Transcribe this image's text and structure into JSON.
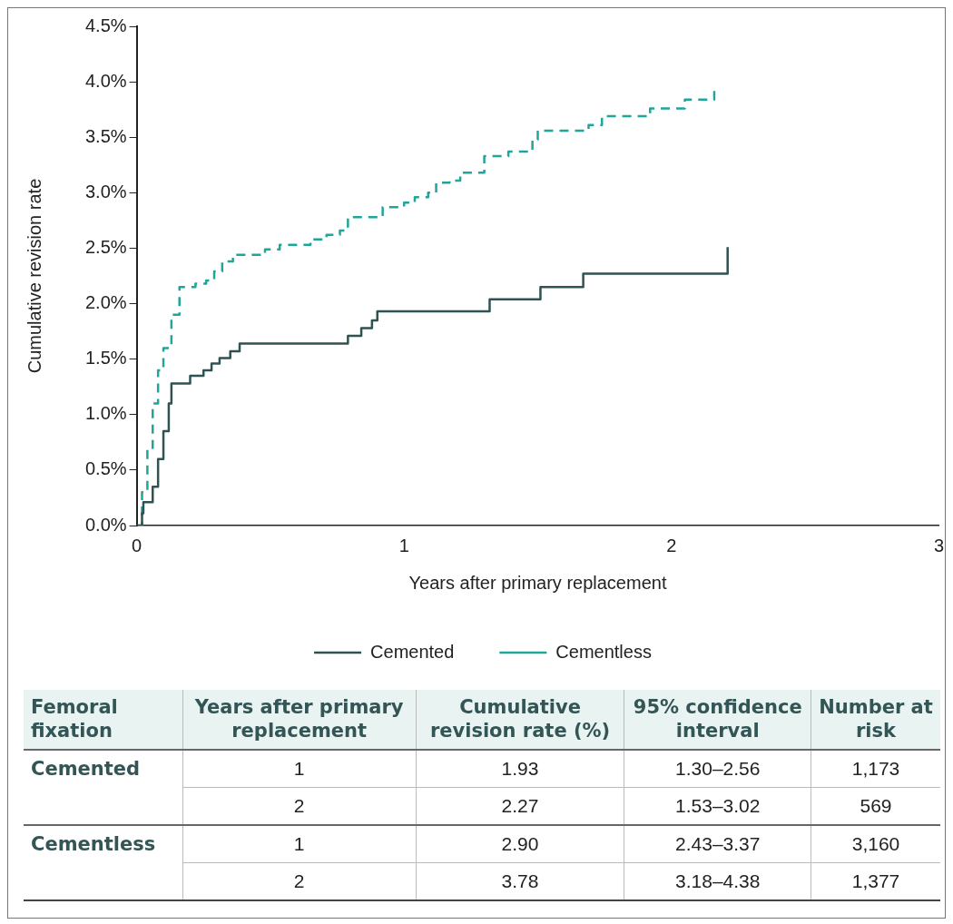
{
  "chart_data": {
    "type": "step",
    "xlabel": "Years after primary replacement",
    "ylabel": "Cumulative revision rate",
    "series": [
      {
        "name": "Cemented",
        "color": "#2f5252",
        "line_style": "solid",
        "x": [
          0,
          0.02,
          0.025,
          0.045,
          0.06,
          0.08,
          0.1,
          0.12,
          0.13,
          0.2,
          0.25,
          0.28,
          0.31,
          0.35,
          0.385,
          0.79,
          0.84,
          0.88,
          0.9,
          1.32,
          1.51,
          1.67,
          2.21
        ],
        "values": [
          0,
          0.11,
          0.21,
          0.21,
          0.35,
          0.6,
          0.85,
          1.1,
          1.28,
          1.35,
          1.4,
          1.46,
          1.51,
          1.57,
          1.64,
          1.71,
          1.78,
          1.85,
          1.93,
          2.04,
          2.15,
          2.27,
          2.51
        ]
      },
      {
        "name": "Cementless",
        "color": "#1fa59a",
        "line_style": "dashed",
        "x": [
          0,
          0.02,
          0.04,
          0.06,
          0.08,
          0.1,
          0.13,
          0.16,
          0.22,
          0.26,
          0.29,
          0.32,
          0.36,
          0.48,
          0.535,
          0.65,
          0.71,
          0.76,
          0.79,
          0.92,
          1.0,
          1.04,
          1.09,
          1.12,
          1.17,
          1.21,
          1.3,
          1.39,
          1.48,
          1.5,
          1.69,
          1.74,
          1.92,
          2.05,
          2.16
        ],
        "values": [
          0,
          0.3,
          0.7,
          1.1,
          1.4,
          1.6,
          1.9,
          2.15,
          2.18,
          2.21,
          2.29,
          2.38,
          2.44,
          2.49,
          2.53,
          2.58,
          2.62,
          2.66,
          2.78,
          2.87,
          2.91,
          2.96,
          3.0,
          3.09,
          3.11,
          3.18,
          3.33,
          3.37,
          3.48,
          3.56,
          3.61,
          3.69,
          3.76,
          3.84,
          3.93
        ]
      }
    ],
    "xlim": [
      0,
      3
    ],
    "xticks": [
      0,
      1,
      2,
      3
    ],
    "ylim": [
      0,
      4.5
    ],
    "yticks": [
      {
        "value": 0,
        "label": "0.0%"
      },
      {
        "value": 0.5,
        "label": "0.5%"
      },
      {
        "value": 1,
        "label": "1.0%"
      },
      {
        "value": 1.5,
        "label": "1.5%"
      },
      {
        "value": 2,
        "label": "2.0%"
      },
      {
        "value": 2.5,
        "label": "2.5%"
      },
      {
        "value": 3,
        "label": "3.0%"
      },
      {
        "value": 3.5,
        "label": "3.5%"
      },
      {
        "value": 4,
        "label": "4.0%"
      },
      {
        "value": 4.5,
        "label": "4.5%"
      }
    ],
    "grid": false,
    "legend": "bottom",
    "marker": "none",
    "annotations": [
      "Femoral fixation",
      "Years after primary replacement",
      "Cumulative revision rate (%)",
      "95% confidence interval",
      "Number at risk",
      "Cemented",
      "1",
      "1.93",
      "1.30–2.56",
      "1,173",
      "2",
      "2.27",
      "1.53–3.02",
      "569",
      "Cementless",
      "1",
      "2.90",
      "2.43–3.37",
      "3,160",
      "2",
      "3.78",
      "3.18–4.38",
      "1,377"
    ]
  }
}
